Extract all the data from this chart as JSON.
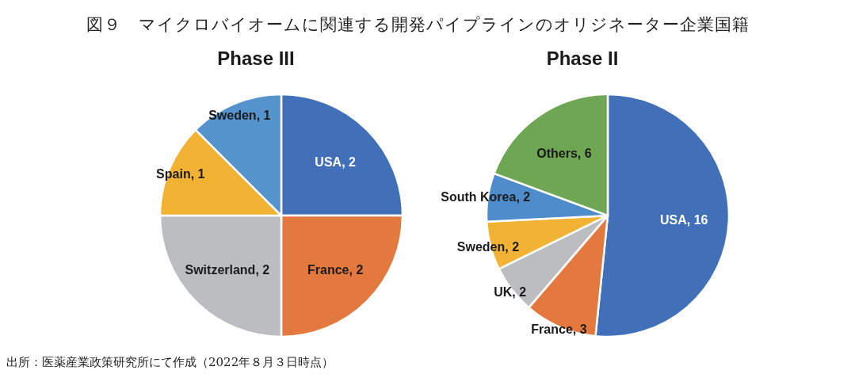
{
  "chart_data": [
    {
      "type": "other",
      "title": "図９　マイクロバイオームに関連する開発パイプラインのオリジネーター企業国籍",
      "annotations": [
        "出所：医薬産業政策研究所にて作成（2022年８月３日時点）"
      ]
    },
    {
      "type": "pie",
      "title": "Phase III",
      "categories": [
        "USA",
        "France",
        "Switzerland",
        "Spain",
        "Sweden"
      ],
      "values": [
        2,
        2,
        2,
        1,
        1
      ],
      "colors": [
        "#4170b9",
        "#e4793f",
        "#bcbdc1",
        "#f2b233",
        "#5593cc"
      ],
      "value_labels": [
        ", 2",
        ", 2",
        ", 2",
        ", 1",
        ", 1"
      ]
    },
    {
      "type": "pie",
      "title": "Phase II",
      "categories": [
        "USA",
        "France",
        "UK",
        "Sweden",
        "South Korea",
        "Others"
      ],
      "values": [
        16,
        3,
        2,
        2,
        2,
        6
      ],
      "colors": [
        "#4170b9",
        "#e4793f",
        "#bcbdc1",
        "#f2b233",
        "#4e8ccb",
        "#6fa653"
      ],
      "value_labels": [
        ", 16",
        ", 3",
        ", 2",
        ", 2",
        ", 2",
        ", 6"
      ]
    }
  ]
}
